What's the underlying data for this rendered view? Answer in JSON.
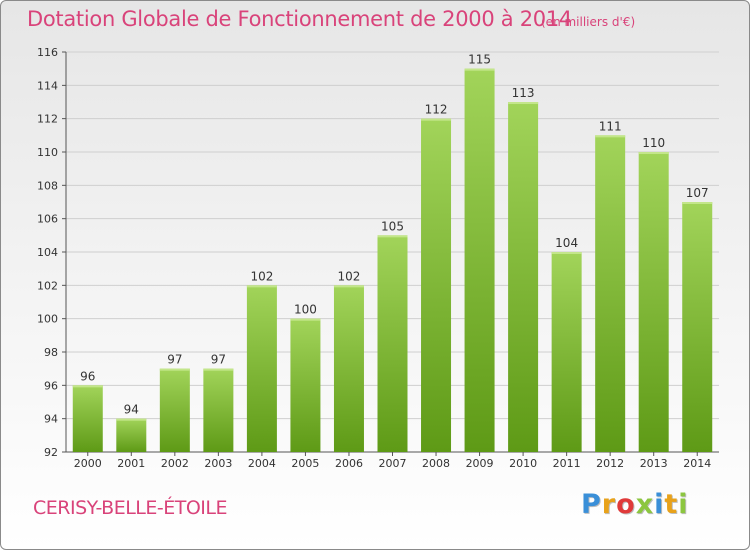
{
  "header": {
    "title": "Dotation Globale de Fonctionnement de 2000 à 2014",
    "subtitle": "(en milliers d'€)"
  },
  "footer": {
    "commune": "CERISY-BELLE-ÉTOILE",
    "logo_text": "Proxiti",
    "logo_colors": [
      "#3a8fd8",
      "#e8a21a",
      "#e03a3a",
      "#8cc63f",
      "#3a8fd8",
      "#e8a21a",
      "#8cc63f"
    ]
  },
  "chart_data": {
    "type": "bar",
    "categories": [
      "2000",
      "2001",
      "2002",
      "2003",
      "2004",
      "2005",
      "2006",
      "2007",
      "2008",
      "2009",
      "2010",
      "2011",
      "2012",
      "2013",
      "2014"
    ],
    "values": [
      96,
      94,
      97,
      97,
      102,
      100,
      102,
      105,
      112,
      115,
      113,
      104,
      111,
      110,
      107
    ],
    "title": "Dotation Globale de Fonctionnement de 2000 à 2014",
    "subtitle": "(en milliers d'€)",
    "xlabel": "",
    "ylabel": "",
    "ylim": [
      92,
      116
    ],
    "yticks": [
      92,
      94,
      96,
      98,
      100,
      102,
      104,
      106,
      108,
      110,
      112,
      114,
      116
    ],
    "grid": true,
    "bar_color_top": "#a2d45a",
    "bar_color_bottom": "#5e9a16"
  }
}
